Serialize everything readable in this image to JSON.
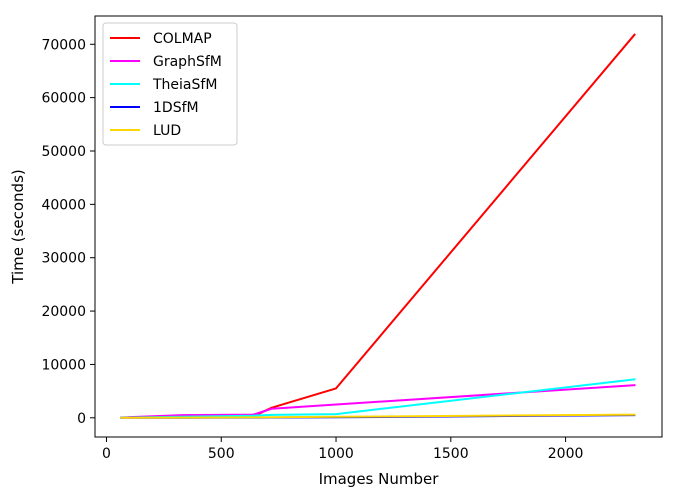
{
  "chart_data": {
    "type": "line",
    "title": "",
    "xlabel": "Images Number",
    "ylabel": "Time (seconds)",
    "xlim": [
      -50,
      2420
    ],
    "ylim": [
      -3600,
      75300
    ],
    "xticks": [
      0,
      500,
      1000,
      1500,
      2000
    ],
    "yticks": [
      0,
      10000,
      20000,
      30000,
      40000,
      50000,
      60000,
      70000
    ],
    "grid": false,
    "legend_position": "top-left",
    "series": [
      {
        "name": "COLMAP",
        "color": "#ff0000",
        "x": [
          65,
          330,
          640,
          720,
          1000,
          2300
        ],
        "y": [
          50,
          150,
          280,
          1900,
          5500,
          71800
        ]
      },
      {
        "name": "GraphSfM",
        "color": "#ff00ff",
        "x": [
          65,
          330,
          640,
          720,
          1000,
          2300
        ],
        "y": [
          50,
          500,
          600,
          1700,
          2500,
          6100
        ]
      },
      {
        "name": "TheiaSfM",
        "color": "#00ffff",
        "x": [
          65,
          330,
          640,
          720,
          1000,
          2300
        ],
        "y": [
          30,
          200,
          400,
          550,
          700,
          7200
        ]
      },
      {
        "name": "1DSfM",
        "color": "#0000ff",
        "x": [
          65,
          330,
          640,
          720,
          1000,
          2300
        ],
        "y": [
          5,
          20,
          40,
          60,
          90,
          500
        ]
      },
      {
        "name": "LUD",
        "color": "#ffd700",
        "x": [
          65,
          330,
          640,
          720,
          1000,
          2300
        ],
        "y": [
          10,
          40,
          80,
          120,
          180,
          600
        ]
      }
    ]
  }
}
